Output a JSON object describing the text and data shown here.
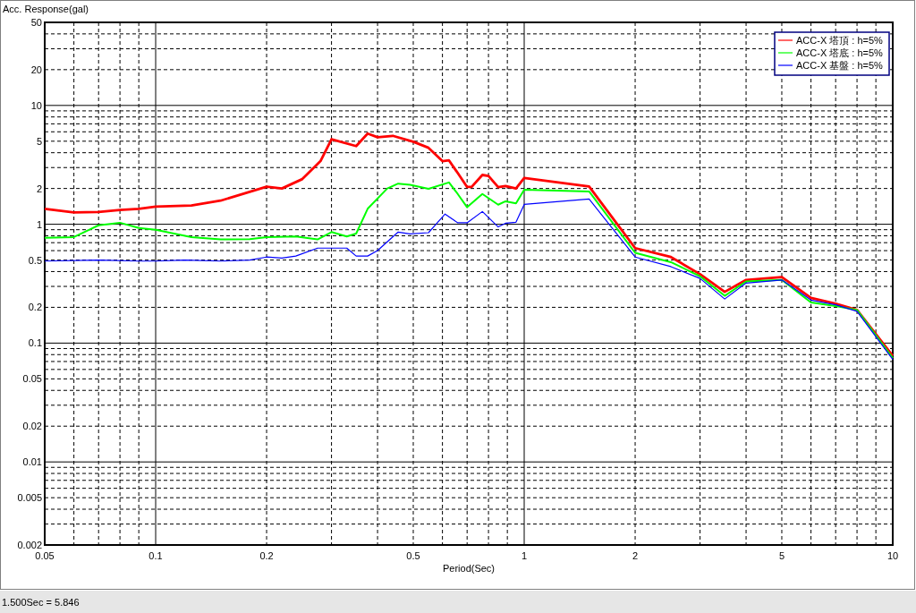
{
  "chart_data": {
    "type": "line",
    "ylabel": "Acc. Response(gal)",
    "xlabel": "Period(Sec)",
    "log": "xy",
    "grid": true,
    "legend": "top right",
    "marker": "none",
    "line_style": "solid",
    "annotations": [
      "1.500Sec = 5.846"
    ],
    "xlim": [
      0.05,
      10
    ],
    "ylim": [
      0.002,
      50
    ],
    "xticks": [
      0.05,
      {
        "value": 0.06,
        "label": null
      },
      {
        "value": 0.07,
        "label": null
      },
      {
        "value": 0.08,
        "label": null
      },
      {
        "value": 0.09,
        "label": null
      },
      0.1,
      0.2,
      {
        "value": 0.3,
        "label": null
      },
      {
        "value": 0.4,
        "label": null
      },
      0.5,
      {
        "value": 0.6,
        "label": null
      },
      {
        "value": 0.7,
        "label": null
      },
      {
        "value": 0.8,
        "label": null
      },
      {
        "value": 0.9,
        "label": null
      },
      1,
      2,
      {
        "value": 3,
        "label": null
      },
      {
        "value": 4,
        "label": null
      },
      5,
      {
        "value": 6,
        "label": null
      },
      {
        "value": 7,
        "label": null
      },
      {
        "value": 8,
        "label": null
      },
      {
        "value": 9,
        "label": null
      },
      10
    ],
    "yticks": [
      0.002,
      {
        "value": 0.003,
        "label": null
      },
      {
        "value": 0.004,
        "label": null
      },
      0.005,
      {
        "value": 0.006,
        "label": null
      },
      {
        "value": 0.007,
        "label": null
      },
      {
        "value": 0.008,
        "label": null
      },
      {
        "value": 0.009,
        "label": null
      },
      0.01,
      0.02,
      {
        "value": 0.03,
        "label": null
      },
      {
        "value": 0.04,
        "label": null
      },
      0.05,
      {
        "value": 0.06,
        "label": null
      },
      {
        "value": 0.07,
        "label": null
      },
      {
        "value": 0.08,
        "label": null
      },
      {
        "value": 0.09,
        "label": null
      },
      0.1,
      0.2,
      {
        "value": 0.3,
        "label": null
      },
      {
        "value": 0.4,
        "label": null
      },
      0.5,
      {
        "value": 0.6,
        "label": null
      },
      {
        "value": 0.7,
        "label": null
      },
      {
        "value": 0.8,
        "label": null
      },
      {
        "value": 0.9,
        "label": null
      },
      1,
      2,
      {
        "value": 3,
        "label": null
      },
      {
        "value": 4,
        "label": null
      },
      5,
      {
        "value": 6,
        "label": null
      },
      {
        "value": 7,
        "label": null
      },
      {
        "value": 8,
        "label": null
      },
      {
        "value": 9,
        "label": null
      },
      10,
      20,
      {
        "value": 30,
        "label": null
      },
      {
        "value": 40,
        "label": null
      },
      50
    ],
    "series": [
      {
        "name": "ACC-X 塔頂 : h=5%",
        "color": "#ff0000",
        "x": [
          0.05,
          0.06,
          0.07,
          0.08,
          0.09,
          0.1,
          0.125,
          0.15,
          0.2,
          0.22,
          0.25,
          0.28,
          0.3,
          0.35,
          0.376,
          0.4,
          0.44,
          0.5,
          0.55,
          0.6,
          0.625,
          0.66,
          0.7,
          0.72,
          0.77,
          0.8,
          0.85,
          0.89,
          0.95,
          1,
          1.5,
          2,
          2.5,
          3,
          3.5,
          4,
          5,
          6,
          7,
          8,
          10
        ],
        "values": [
          1.35,
          1.26,
          1.27,
          1.32,
          1.35,
          1.41,
          1.44,
          1.58,
          2.07,
          2.0,
          2.4,
          3.4,
          5.2,
          4.55,
          5.8,
          5.4,
          5.55,
          4.95,
          4.4,
          3.4,
          3.45,
          2.7,
          2.06,
          2.06,
          2.6,
          2.55,
          2.05,
          2.1,
          2.0,
          2.45,
          2.08,
          0.63,
          0.53,
          0.38,
          0.27,
          0.34,
          0.36,
          0.24,
          0.215,
          0.19,
          0.078
        ]
      },
      {
        "name": "ACC-X 塔底 : h=5%",
        "color": "#00ff00",
        "x": [
          0.05,
          0.06,
          0.07,
          0.08,
          0.09,
          0.1,
          0.125,
          0.15,
          0.18,
          0.2,
          0.24,
          0.275,
          0.3,
          0.33,
          0.35,
          0.376,
          0.425,
          0.455,
          0.49,
          0.55,
          0.625,
          0.66,
          0.7,
          0.77,
          0.85,
          0.89,
          0.95,
          1,
          1.5,
          2,
          2.5,
          3,
          3.5,
          4,
          5,
          6,
          7,
          8,
          10
        ],
        "values": [
          0.77,
          0.78,
          0.98,
          1.03,
          0.93,
          0.9,
          0.78,
          0.745,
          0.75,
          0.78,
          0.79,
          0.745,
          0.86,
          0.79,
          0.835,
          1.35,
          2.0,
          2.2,
          2.15,
          1.99,
          2.25,
          1.8,
          1.39,
          1.8,
          1.46,
          1.56,
          1.5,
          1.95,
          1.89,
          0.575,
          0.48,
          0.365,
          0.25,
          0.33,
          0.34,
          0.22,
          0.205,
          0.19,
          0.075
        ]
      },
      {
        "name": "ACC-X 基盤 : h=5%",
        "color": "#0000ff",
        "x": [
          0.05,
          0.07,
          0.09,
          0.1,
          0.12,
          0.15,
          0.18,
          0.2,
          0.22,
          0.24,
          0.275,
          0.33,
          0.35,
          0.376,
          0.4,
          0.455,
          0.49,
          0.55,
          0.61,
          0.66,
          0.7,
          0.77,
          0.85,
          0.89,
          0.95,
          1,
          1.5,
          2,
          2.5,
          3,
          3.5,
          4,
          5,
          6,
          7,
          8,
          10
        ],
        "values": [
          0.49,
          0.5,
          0.49,
          0.49,
          0.5,
          0.49,
          0.5,
          0.53,
          0.52,
          0.54,
          0.63,
          0.63,
          0.54,
          0.54,
          0.6,
          0.86,
          0.83,
          0.85,
          1.22,
          1.03,
          1.03,
          1.28,
          0.95,
          1.02,
          1.04,
          1.47,
          1.63,
          0.53,
          0.44,
          0.35,
          0.235,
          0.32,
          0.34,
          0.23,
          0.21,
          0.185,
          0.073
        ]
      }
    ]
  }
}
